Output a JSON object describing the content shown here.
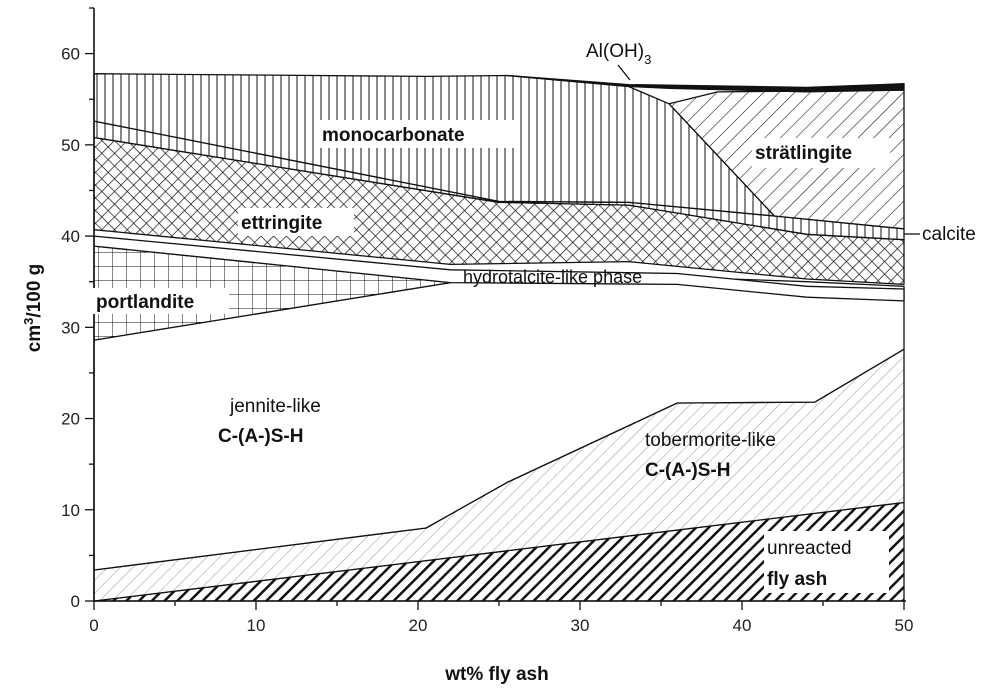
{
  "chart_data": {
    "type": "area",
    "title": "",
    "xlabel": "wt% fly ash",
    "ylabel_main": "cm",
    "ylabel_sup": "3",
    "ylabel_rest": "/100 g",
    "xlim": [
      0,
      50
    ],
    "ylim": [
      0,
      65
    ],
    "xticks": [
      0,
      10,
      20,
      30,
      40,
      50
    ],
    "yticks": [
      0,
      10,
      20,
      30,
      40,
      50,
      60
    ],
    "grid": false,
    "labels": {
      "unreacted": "unreacted",
      "flyash": "fly ash",
      "tobermorite": "tobermorite-like",
      "tobermorite_csh": "C-(A-)S-H",
      "jennite": "jennite-like",
      "jennite_csh": "C-(A-)S-H",
      "portlandite": "portlandite",
      "hydrotalcite": "hydrotalcite-like phase",
      "ettringite": "ettringite",
      "monocarbonate": "monocarbonate",
      "stratlingite": "strätlingite",
      "calcite": "calcite",
      "aloh": "Al(OH)",
      "aloh_sub": "3"
    },
    "series": [
      {
        "id": "flyash",
        "pattern": "thick-diagonal",
        "lower": [
          [
            0,
            0
          ],
          [
            50,
            0
          ]
        ],
        "upper": [
          [
            0,
            0
          ],
          [
            50,
            10.8
          ]
        ]
      },
      {
        "id": "tobermorite",
        "pattern": "fine-diagonal",
        "lower": [
          [
            0,
            0
          ],
          [
            50,
            10.8
          ]
        ],
        "upper": [
          [
            0,
            3.4
          ],
          [
            20.5,
            8
          ],
          [
            22,
            9.5
          ],
          [
            25.5,
            13
          ],
          [
            36,
            21.7
          ],
          [
            44.5,
            21.8
          ],
          [
            50,
            27.6
          ]
        ]
      },
      {
        "id": "jennite",
        "pattern": "none",
        "lower": [
          [
            0,
            3.4
          ],
          [
            20.5,
            8
          ],
          [
            22,
            9.5
          ],
          [
            25.5,
            13
          ],
          [
            36,
            21.7
          ],
          [
            44.5,
            21.8
          ],
          [
            50,
            27.6
          ]
        ],
        "upper": [
          [
            0,
            28.6
          ],
          [
            22,
            34.9
          ],
          [
            25.5,
            35.2
          ],
          [
            30,
            35.2
          ],
          [
            36,
            35.5
          ],
          [
            44,
            35
          ],
          [
            50,
            34.5
          ]
        ]
      },
      {
        "id": "portlandite",
        "pattern": "grid",
        "lower": [
          [
            0,
            28.6
          ],
          [
            22,
            34.9
          ]
        ],
        "upper": [
          [
            0,
            38.9
          ],
          [
            22,
            34.9
          ]
        ]
      },
      {
        "id": "hydrotalcite",
        "pattern": "none",
        "lower": [
          [
            0,
            38.9
          ],
          [
            22,
            34.9
          ],
          [
            36,
            34.7
          ],
          [
            44,
            33.3
          ],
          [
            50,
            32.9
          ]
        ],
        "upper": [
          [
            0,
            40
          ],
          [
            22,
            36.3
          ],
          [
            36,
            35.9
          ],
          [
            44,
            34.5
          ],
          [
            50,
            34.2
          ]
        ]
      },
      {
        "id": "ettringite",
        "pattern": "crosshatch",
        "lower": [
          [
            0,
            40.7
          ],
          [
            22,
            36.9
          ],
          [
            33,
            37.2
          ],
          [
            44,
            35.3
          ],
          [
            50,
            34.7
          ]
        ],
        "upper": [
          [
            0,
            50.8
          ],
          [
            25,
            43.7
          ],
          [
            33,
            43.4
          ],
          [
            44,
            40.2
          ],
          [
            50,
            39.6
          ]
        ]
      },
      {
        "id": "calcite",
        "pattern": "vertical",
        "lower": [
          [
            0,
            50.8
          ],
          [
            25,
            43.7
          ],
          [
            33,
            43.4
          ],
          [
            44,
            40.2
          ],
          [
            50,
            39.6
          ]
        ],
        "upper": [
          [
            0,
            52.6
          ],
          [
            25,
            43.8
          ],
          [
            33,
            43.7
          ],
          [
            42,
            42.2
          ],
          [
            50,
            40.8
          ]
        ]
      },
      {
        "id": "monocarbonate",
        "pattern": "vertical",
        "lower": [
          [
            0,
            52.6
          ],
          [
            25,
            43.8
          ],
          [
            33,
            43.7
          ],
          [
            42,
            42.2
          ]
        ],
        "upper": [
          [
            0,
            57.8
          ],
          [
            20.5,
            57.5
          ],
          [
            25.5,
            57.6
          ],
          [
            33,
            56.4
          ],
          [
            35.5,
            54.5
          ]
        ]
      },
      {
        "id": "stratlingite",
        "pattern": "diagonal",
        "lower": [
          [
            35.5,
            54.5
          ],
          [
            42,
            42.2
          ],
          [
            50,
            40.8
          ]
        ],
        "upper": [
          [
            35.5,
            54.5
          ],
          [
            38.5,
            55.8
          ],
          [
            50,
            56
          ]
        ]
      },
      {
        "id": "aloh",
        "pattern": "solid",
        "lower": [
          [
            33,
            56.4
          ],
          [
            35.5,
            56.2
          ],
          [
            44,
            55.8
          ],
          [
            50,
            56
          ]
        ],
        "upper": [
          [
            25.5,
            57.6
          ],
          [
            33,
            56.6
          ],
          [
            44,
            56.3
          ],
          [
            50,
            56.7
          ]
        ]
      }
    ]
  }
}
